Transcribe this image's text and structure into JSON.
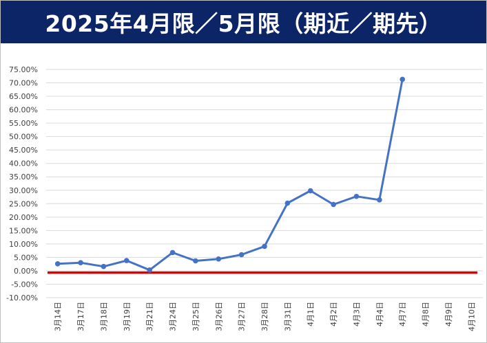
{
  "header": {
    "title": "2025年4月限／5月限（期近／期先）"
  },
  "colors": {
    "title_bg": "#0b2566",
    "title_fg": "#ffffff",
    "series_line": "#4472c4",
    "zero_line": "#e00000",
    "grid": "#d9d9d9",
    "tick_text": "#404040"
  },
  "chart_data": {
    "type": "line",
    "title": "2025年4月限／5月限（期近／期先）",
    "xlabel": "",
    "ylabel": "",
    "ylim": [
      -10,
      75
    ],
    "y_step": 5,
    "y_format": "percent_2dp",
    "grid": "horizontal",
    "legend": "none",
    "categories": [
      "3月14日",
      "3月17日",
      "3月18日",
      "3月19日",
      "3月21日",
      "3月24日",
      "3月25日",
      "3月26日",
      "3月27日",
      "3月28日",
      "3月31日",
      "4月1日",
      "4月2日",
      "4月3日",
      "4月4日",
      "4月7日",
      "4月8日",
      "4月9日",
      "4月10日"
    ],
    "series": [
      {
        "values": [
          2.6,
          3.0,
          1.6,
          3.8,
          0.3,
          6.8,
          3.7,
          4.4,
          6.0,
          9.1,
          25.2,
          29.8,
          24.7,
          27.7,
          26.4,
          71.3,
          null,
          null,
          null
        ]
      }
    ],
    "reference_lines": [
      {
        "value": -0.7,
        "color": "#e00000"
      }
    ]
  }
}
